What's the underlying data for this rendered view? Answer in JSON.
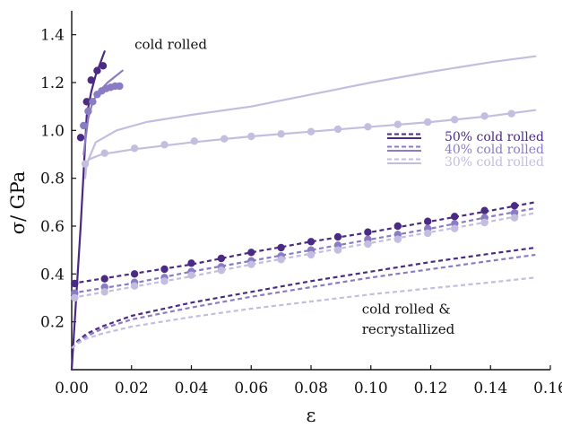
{
  "chart_data": {
    "type": "line",
    "xlabel": "ε",
    "ylabel": "σ/ GPa",
    "xlim": [
      0,
      0.16
    ],
    "ylim": [
      0,
      1.5
    ],
    "xticks": [
      "0.00",
      "0.02",
      "0.04",
      "0.06",
      "0.08",
      "0.10",
      "0.12",
      "0.14",
      "0.16"
    ],
    "yticks": [
      "0.2",
      "0.4",
      "0.6",
      "0.8",
      "1.0",
      "1.2",
      "1.4"
    ],
    "grid": false,
    "legend_placement": "right-middle",
    "colors": {
      "50": "#4a2a82",
      "40": "#8a7cc4",
      "30": "#c3bde0"
    },
    "annotations": [
      {
        "text": "cold rolled",
        "x": 0.021,
        "y": 1.34
      },
      {
        "text": "cold rolled &",
        "x": 0.097,
        "y": 0.235
      },
      {
        "text": "recrystallized",
        "x": 0.097,
        "y": 0.15
      }
    ],
    "legend": [
      {
        "key": "50",
        "label": "50% cold rolled"
      },
      {
        "key": "40",
        "label": "40% cold rolled"
      },
      {
        "key": "30",
        "label": "30% cold rolled"
      }
    ],
    "series": [
      {
        "group": "cold rolled",
        "pct": "50",
        "style": "solid",
        "curve": [
          [
            0,
            0
          ],
          [
            0.003,
            0.6
          ],
          [
            0.005,
            1.06
          ],
          [
            0.0065,
            1.16
          ],
          [
            0.008,
            1.23
          ],
          [
            0.0095,
            1.28
          ],
          [
            0.011,
            1.33
          ]
        ],
        "points": [
          [
            0.003,
            0.97
          ],
          [
            0.005,
            1.12
          ],
          [
            0.0065,
            1.21
          ],
          [
            0.0085,
            1.25
          ],
          [
            0.0105,
            1.27
          ]
        ]
      },
      {
        "group": "cold rolled",
        "pct": "40",
        "style": "solid",
        "curve": [
          [
            0.004,
            0.9
          ],
          [
            0.0055,
            1.05
          ],
          [
            0.007,
            1.12
          ],
          [
            0.009,
            1.16
          ],
          [
            0.012,
            1.2
          ],
          [
            0.015,
            1.23
          ],
          [
            0.017,
            1.25
          ]
        ],
        "points": [
          [
            0.004,
            1.02
          ],
          [
            0.0055,
            1.08
          ],
          [
            0.007,
            1.12
          ],
          [
            0.0085,
            1.15
          ],
          [
            0.01,
            1.165
          ],
          [
            0.0115,
            1.175
          ],
          [
            0.013,
            1.18
          ],
          [
            0.0145,
            1.185
          ],
          [
            0.016,
            1.185
          ]
        ]
      },
      {
        "group": "cold rolled",
        "pct": "30",
        "style": "solid",
        "curve": [
          [
            0.0045,
            0.8
          ],
          [
            0.005,
            0.86
          ],
          [
            0.008,
            0.95
          ],
          [
            0.015,
            1.0
          ],
          [
            0.025,
            1.035
          ],
          [
            0.04,
            1.065
          ],
          [
            0.06,
            1.1
          ],
          [
            0.08,
            1.15
          ],
          [
            0.1,
            1.2
          ],
          [
            0.12,
            1.245
          ],
          [
            0.14,
            1.285
          ],
          [
            0.155,
            1.31
          ]
        ],
        "points": []
      },
      {
        "group": "cold rolled",
        "pct": "30",
        "style": "solid",
        "curve": [
          [
            0.0045,
            0.86
          ],
          [
            0.006,
            0.88
          ],
          [
            0.01,
            0.9
          ],
          [
            0.02,
            0.92
          ],
          [
            0.04,
            0.95
          ],
          [
            0.06,
            0.975
          ],
          [
            0.08,
            0.995
          ],
          [
            0.1,
            1.015
          ],
          [
            0.12,
            1.035
          ],
          [
            0.14,
            1.06
          ],
          [
            0.155,
            1.085
          ]
        ],
        "points": [
          [
            0.0045,
            0.86
          ],
          [
            0.011,
            0.905
          ],
          [
            0.021,
            0.925
          ],
          [
            0.031,
            0.94
          ],
          [
            0.041,
            0.955
          ],
          [
            0.051,
            0.965
          ],
          [
            0.06,
            0.975
          ],
          [
            0.07,
            0.985
          ],
          [
            0.08,
            0.995
          ],
          [
            0.089,
            1.005
          ],
          [
            0.099,
            1.015
          ],
          [
            0.109,
            1.025
          ],
          [
            0.119,
            1.035
          ],
          [
            0.128,
            1.045
          ],
          [
            0.138,
            1.06
          ],
          [
            0.147,
            1.07
          ]
        ]
      },
      {
        "group": "mid",
        "pct": "50",
        "style": "dashed",
        "curve": [
          [
            0,
            0.36
          ],
          [
            0.02,
            0.4
          ],
          [
            0.04,
            0.44
          ],
          [
            0.06,
            0.49
          ],
          [
            0.08,
            0.535
          ],
          [
            0.1,
            0.575
          ],
          [
            0.12,
            0.62
          ],
          [
            0.14,
            0.665
          ],
          [
            0.155,
            0.7
          ]
        ],
        "points": [
          [
            0.001,
            0.36
          ],
          [
            0.011,
            0.38
          ],
          [
            0.021,
            0.4
          ],
          [
            0.031,
            0.42
          ],
          [
            0.04,
            0.445
          ],
          [
            0.05,
            0.465
          ],
          [
            0.06,
            0.49
          ],
          [
            0.07,
            0.51
          ],
          [
            0.08,
            0.535
          ],
          [
            0.089,
            0.555
          ],
          [
            0.099,
            0.575
          ],
          [
            0.109,
            0.6
          ],
          [
            0.119,
            0.62
          ],
          [
            0.128,
            0.64
          ],
          [
            0.138,
            0.665
          ],
          [
            0.148,
            0.685
          ]
        ]
      },
      {
        "group": "mid",
        "pct": "40",
        "style": "dashed",
        "curve": [
          [
            0,
            0.32
          ],
          [
            0.02,
            0.36
          ],
          [
            0.04,
            0.41
          ],
          [
            0.06,
            0.455
          ],
          [
            0.08,
            0.5
          ],
          [
            0.1,
            0.545
          ],
          [
            0.12,
            0.59
          ],
          [
            0.14,
            0.64
          ],
          [
            0.155,
            0.675
          ]
        ],
        "points": [
          [
            0.001,
            0.32
          ],
          [
            0.011,
            0.345
          ],
          [
            0.021,
            0.365
          ],
          [
            0.031,
            0.385
          ],
          [
            0.04,
            0.41
          ],
          [
            0.05,
            0.43
          ],
          [
            0.06,
            0.455
          ],
          [
            0.07,
            0.475
          ],
          [
            0.08,
            0.5
          ],
          [
            0.089,
            0.52
          ],
          [
            0.099,
            0.545
          ],
          [
            0.109,
            0.565
          ],
          [
            0.119,
            0.59
          ],
          [
            0.128,
            0.61
          ],
          [
            0.138,
            0.635
          ],
          [
            0.148,
            0.655
          ]
        ]
      },
      {
        "group": "mid",
        "pct": "30",
        "style": "dashed",
        "curve": [
          [
            0,
            0.3
          ],
          [
            0.02,
            0.345
          ],
          [
            0.04,
            0.39
          ],
          [
            0.06,
            0.44
          ],
          [
            0.08,
            0.485
          ],
          [
            0.1,
            0.53
          ],
          [
            0.12,
            0.575
          ],
          [
            0.14,
            0.62
          ],
          [
            0.155,
            0.655
          ]
        ],
        "points": [
          [
            0.001,
            0.3
          ],
          [
            0.011,
            0.325
          ],
          [
            0.021,
            0.35
          ],
          [
            0.031,
            0.37
          ],
          [
            0.04,
            0.395
          ],
          [
            0.05,
            0.415
          ],
          [
            0.06,
            0.44
          ],
          [
            0.07,
            0.46
          ],
          [
            0.08,
            0.48
          ],
          [
            0.089,
            0.5
          ],
          [
            0.099,
            0.525
          ],
          [
            0.109,
            0.545
          ],
          [
            0.119,
            0.57
          ],
          [
            0.128,
            0.59
          ],
          [
            0.138,
            0.615
          ],
          [
            0.148,
            0.635
          ]
        ]
      },
      {
        "group": "recrystallized",
        "pct": "50",
        "style": "dashed",
        "curve": [
          [
            0,
            0.09
          ],
          [
            0.002,
            0.12
          ],
          [
            0.005,
            0.15
          ],
          [
            0.01,
            0.18
          ],
          [
            0.02,
            0.225
          ],
          [
            0.04,
            0.28
          ],
          [
            0.06,
            0.325
          ],
          [
            0.08,
            0.37
          ],
          [
            0.1,
            0.41
          ],
          [
            0.12,
            0.45
          ],
          [
            0.14,
            0.485
          ],
          [
            0.155,
            0.51
          ]
        ],
        "points": []
      },
      {
        "group": "recrystallized",
        "pct": "40",
        "style": "dashed",
        "curve": [
          [
            0,
            0.09
          ],
          [
            0.002,
            0.115
          ],
          [
            0.005,
            0.14
          ],
          [
            0.01,
            0.17
          ],
          [
            0.02,
            0.21
          ],
          [
            0.04,
            0.26
          ],
          [
            0.06,
            0.305
          ],
          [
            0.08,
            0.345
          ],
          [
            0.1,
            0.385
          ],
          [
            0.12,
            0.42
          ],
          [
            0.14,
            0.455
          ],
          [
            0.155,
            0.48
          ]
        ],
        "points": []
      },
      {
        "group": "recrystallized",
        "pct": "30",
        "style": "dashed",
        "curve": [
          [
            0,
            0.09
          ],
          [
            0.002,
            0.11
          ],
          [
            0.005,
            0.13
          ],
          [
            0.01,
            0.15
          ],
          [
            0.02,
            0.18
          ],
          [
            0.04,
            0.22
          ],
          [
            0.06,
            0.255
          ],
          [
            0.08,
            0.285
          ],
          [
            0.1,
            0.315
          ],
          [
            0.12,
            0.34
          ],
          [
            0.14,
            0.365
          ],
          [
            0.155,
            0.385
          ]
        ],
        "points": []
      }
    ]
  }
}
